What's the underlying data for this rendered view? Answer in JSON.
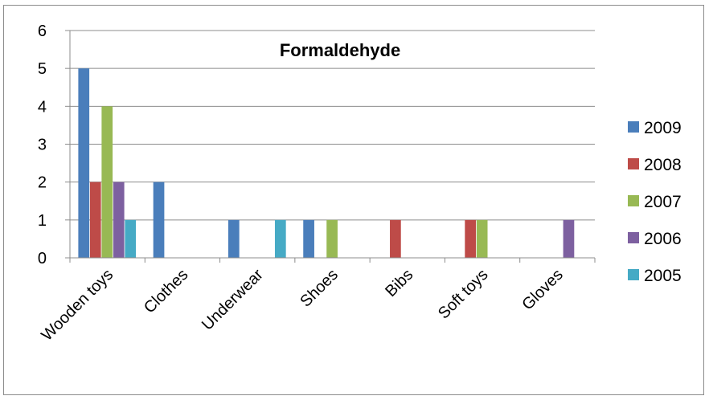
{
  "chart_data": {
    "type": "bar",
    "title": "Formaldehyde",
    "categories": [
      "Wooden toys",
      "Clothes",
      "Underwear",
      "Shoes",
      "Bibs",
      "Soft toys",
      "Gloves"
    ],
    "series": [
      {
        "name": "2009",
        "color": "#4a7ebb",
        "values": [
          5,
          2,
          1,
          1,
          0,
          0,
          0
        ]
      },
      {
        "name": "2008",
        "color": "#be4b48",
        "values": [
          2,
          0,
          0,
          0,
          1,
          1,
          0
        ]
      },
      {
        "name": "2007",
        "color": "#98b954",
        "values": [
          4,
          0,
          0,
          1,
          0,
          1,
          0
        ]
      },
      {
        "name": "2006",
        "color": "#7d60a0",
        "values": [
          2,
          0,
          0,
          0,
          0,
          0,
          1
        ]
      },
      {
        "name": "2005",
        "color": "#46aac5",
        "values": [
          1,
          0,
          1,
          0,
          0,
          0,
          0
        ]
      }
    ],
    "yticks": [
      "0",
      "1",
      "2",
      "3",
      "4",
      "5",
      "6"
    ],
    "ylim": [
      0,
      6
    ],
    "grid": true,
    "legend_position": "right"
  }
}
